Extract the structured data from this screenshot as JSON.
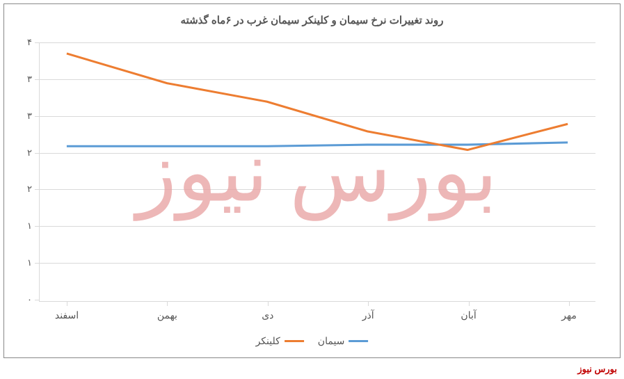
{
  "chart": {
    "type": "line",
    "title": "روند تغییرات نرخ سیمان و کلینکر سیمان غرب در ۶ماه گذشته",
    "title_fontsize": 15,
    "title_color": "#555555",
    "background_color": "#ffffff",
    "border_color": "#888888",
    "grid_color": "#d9d9d9",
    "categories": [
      "مهر",
      "آبان",
      "آذر",
      "دی",
      "بهمن",
      "اسفند"
    ],
    "x_direction": "rtl",
    "ylim": [
      0,
      3.5
    ],
    "ytick_positions": [
      0,
      0.5,
      1,
      1.5,
      2,
      2.5,
      3,
      3.5
    ],
    "ytick_labels": [
      "۰",
      "۱",
      "۱",
      "۲",
      "۲",
      "۳",
      "۳",
      "۴"
    ],
    "tick_fontsize": 13,
    "tick_color": "#555555",
    "series": [
      {
        "name": "سیمان",
        "color": "#5b9bd5",
        "line_width": 3,
        "values": [
          2.15,
          2.12,
          2.12,
          2.1,
          2.1,
          2.1
        ]
      },
      {
        "name": "کلینکر",
        "color": "#ed7d31",
        "line_width": 3,
        "values": [
          2.4,
          2.05,
          2.3,
          2.7,
          2.95,
          3.35
        ]
      }
    ],
    "legend_position": "bottom",
    "legend_fontsize": 14
  },
  "watermark": {
    "text": "بورس نیوز",
    "color": "#e8a0a0",
    "opacity": 0.75,
    "fontsize": 120
  },
  "footer": {
    "text": "بورس نیوز",
    "color": "#c00000",
    "fontsize": 13
  }
}
